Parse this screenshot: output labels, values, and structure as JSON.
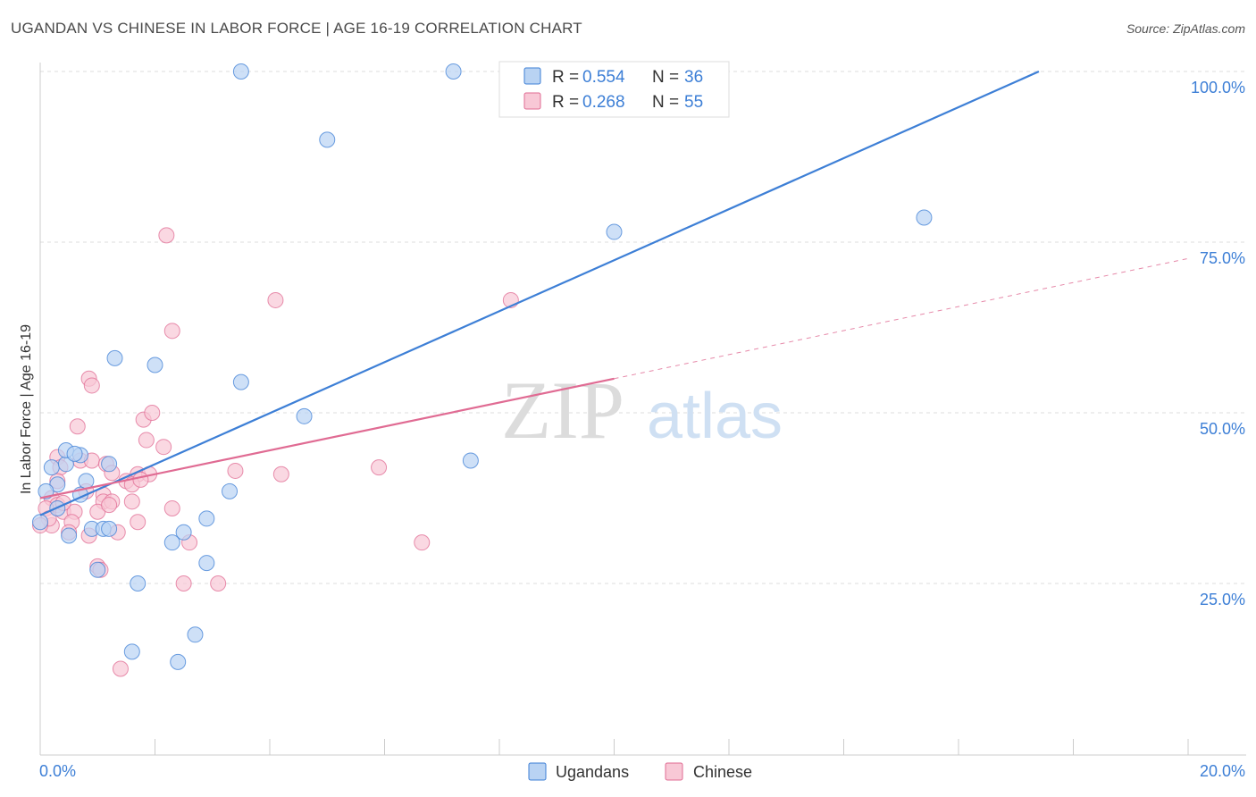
{
  "title": "UGANDAN VS CHINESE IN LABOR FORCE | AGE 16-19 CORRELATION CHART",
  "source": "Source: ZipAtlas.com",
  "watermark": {
    "zip": "ZIP",
    "atlas": "atlas"
  },
  "chart_data": {
    "type": "scatter",
    "title": "UGANDAN VS CHINESE IN LABOR FORCE | AGE 16-19 CORRELATION CHART",
    "xlabel": "",
    "ylabel": "In Labor Force | Age 16-19",
    "xlim": [
      0,
      20
    ],
    "ylim": [
      0,
      102
    ],
    "x_tick_labels": [
      "0.0%",
      "20.0%"
    ],
    "y_ticks": [
      25,
      50,
      75,
      100
    ],
    "y_tick_labels": [
      "25.0%",
      "50.0%",
      "75.0%",
      "100.0%"
    ],
    "grid": true,
    "legend_position": "top-center",
    "series": [
      {
        "name": "Ugandans",
        "color": "#3d7fd6",
        "fill": "#b9d3f3",
        "stats": {
          "r_label": "R =",
          "r_value": "0.554",
          "n_label": "N =",
          "n_value": "36"
        },
        "trend": {
          "x0": 0.0,
          "y0": 35.0,
          "x1": 17.4,
          "y1": 100.0,
          "style": "solid"
        },
        "points": [
          [
            3.5,
            100.0
          ],
          [
            7.2,
            100.0
          ],
          [
            5.0,
            90.0
          ],
          [
            10.0,
            76.5
          ],
          [
            15.4,
            78.6
          ],
          [
            1.3,
            58.0
          ],
          [
            2.0,
            57.0
          ],
          [
            3.5,
            54.5
          ],
          [
            4.6,
            49.5
          ],
          [
            7.5,
            43.0
          ],
          [
            0.2,
            42.0
          ],
          [
            0.45,
            42.5
          ],
          [
            0.45,
            44.5
          ],
          [
            0.7,
            43.8
          ],
          [
            0.6,
            44.0
          ],
          [
            1.2,
            42.5
          ],
          [
            0.3,
            39.5
          ],
          [
            0.8,
            40.0
          ],
          [
            0.1,
            38.5
          ],
          [
            0.7,
            38.0
          ],
          [
            3.3,
            38.5
          ],
          [
            0.3,
            36.0
          ],
          [
            0.5,
            32.0
          ],
          [
            0.9,
            33.0
          ],
          [
            1.1,
            33.0
          ],
          [
            1.2,
            33.0
          ],
          [
            1.0,
            27.0
          ],
          [
            2.5,
            32.5
          ],
          [
            2.3,
            31.0
          ],
          [
            2.9,
            34.5
          ],
          [
            2.9,
            28.0
          ],
          [
            1.7,
            25.0
          ],
          [
            2.7,
            17.5
          ],
          [
            1.6,
            15.0
          ],
          [
            2.4,
            13.5
          ],
          [
            0.0,
            34.0
          ]
        ]
      },
      {
        "name": "Chinese",
        "color": "#e06b93",
        "fill": "#f8c8d6",
        "stats": {
          "r_label": "R =",
          "r_value": "0.268",
          "n_label": "N =",
          "n_value": "55"
        },
        "trend": {
          "x0": 0.0,
          "y0": 37.5,
          "x1": 10.0,
          "y1": 55.0,
          "x2": 20.0,
          "y2": 72.6,
          "style": "solid-then-dashed"
        },
        "points": [
          [
            2.2,
            76.0
          ],
          [
            4.1,
            66.5
          ],
          [
            8.2,
            66.5
          ],
          [
            2.3,
            62.0
          ],
          [
            0.85,
            55.0
          ],
          [
            0.9,
            54.0
          ],
          [
            1.8,
            49.0
          ],
          [
            1.95,
            50.0
          ],
          [
            0.65,
            48.0
          ],
          [
            1.85,
            46.0
          ],
          [
            2.15,
            45.0
          ],
          [
            0.3,
            43.5
          ],
          [
            0.35,
            42.0
          ],
          [
            0.7,
            43.0
          ],
          [
            0.9,
            43.0
          ],
          [
            1.15,
            42.5
          ],
          [
            1.7,
            41.0
          ],
          [
            1.9,
            41.0
          ],
          [
            3.4,
            41.5
          ],
          [
            4.2,
            41.0
          ],
          [
            5.9,
            42.0
          ],
          [
            0.3,
            40.0
          ],
          [
            1.5,
            40.0
          ],
          [
            1.6,
            39.5
          ],
          [
            0.8,
            38.5
          ],
          [
            1.1,
            38.0
          ],
          [
            0.2,
            37.5
          ],
          [
            0.3,
            36.5
          ],
          [
            0.4,
            35.5
          ],
          [
            0.6,
            35.5
          ],
          [
            1.1,
            37.0
          ],
          [
            1.25,
            37.0
          ],
          [
            1.6,
            37.0
          ],
          [
            2.3,
            36.0
          ],
          [
            1.0,
            35.5
          ],
          [
            0.55,
            34.0
          ],
          [
            1.7,
            34.0
          ],
          [
            0.5,
            32.5
          ],
          [
            0.85,
            32.0
          ],
          [
            1.35,
            32.5
          ],
          [
            2.6,
            31.0
          ],
          [
            6.65,
            31.0
          ],
          [
            1.0,
            27.5
          ],
          [
            2.5,
            25.0
          ],
          [
            3.1,
            25.0
          ],
          [
            1.4,
            12.5
          ],
          [
            0.2,
            33.5
          ],
          [
            0.1,
            36.0
          ],
          [
            0.15,
            34.5
          ],
          [
            0.4,
            36.8
          ],
          [
            1.05,
            27.0
          ],
          [
            1.2,
            36.5
          ],
          [
            1.25,
            41.2
          ],
          [
            1.75,
            40.2
          ],
          [
            0.0,
            33.5
          ]
        ]
      }
    ]
  }
}
